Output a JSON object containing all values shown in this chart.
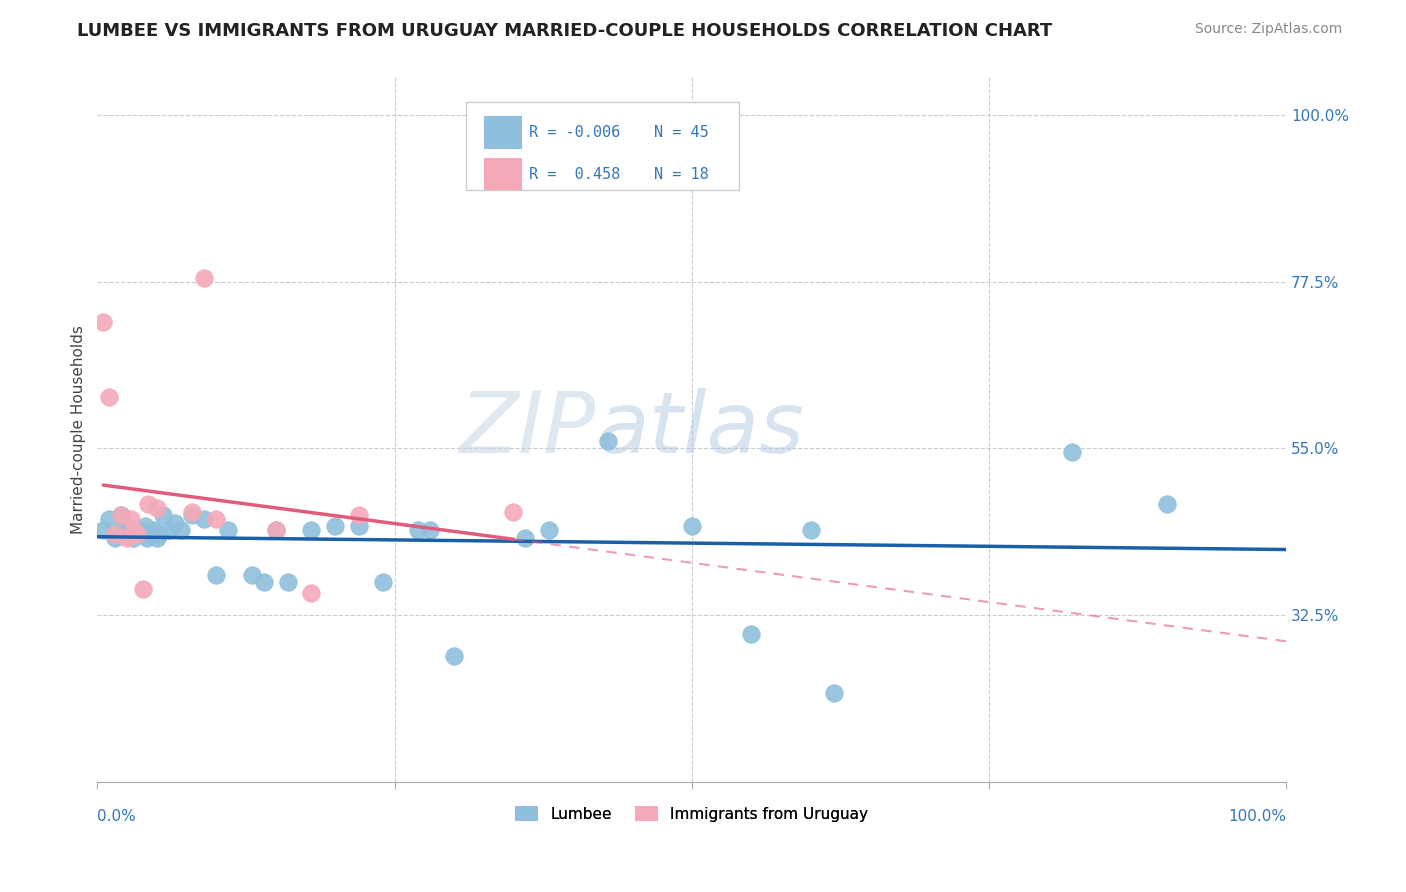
{
  "title": "LUMBEE VS IMMIGRANTS FROM URUGUAY MARRIED-COUPLE HOUSEHOLDS CORRELATION CHART",
  "source": "Source: ZipAtlas.com",
  "ylabel": "Married-couple Households",
  "ytick_labels": [
    "100.0%",
    "77.5%",
    "55.0%",
    "32.5%"
  ],
  "ytick_values": [
    1.0,
    0.775,
    0.55,
    0.325
  ],
  "xlim": [
    0.0,
    1.0
  ],
  "ylim": [
    0.1,
    1.05
  ],
  "legend_lumbee": "Lumbee",
  "legend_uruguay": "Immigrants from Uruguay",
  "R_lumbee": "-0.006",
  "N_lumbee": "45",
  "R_uruguay": "0.458",
  "N_uruguay": "18",
  "watermark_zip": "ZIP",
  "watermark_atlas": "atlas",
  "lumbee_color": "#8fbfdc",
  "uruguay_color": "#f4a9b8",
  "lumbee_trend_color": "#1a5fa8",
  "uruguay_trend_color": "#e05c7a",
  "lumbee_x": [
    0.005,
    0.01,
    0.015,
    0.02,
    0.022,
    0.025,
    0.027,
    0.03,
    0.032,
    0.035,
    0.038,
    0.04,
    0.042,
    0.045,
    0.048,
    0.05,
    0.052,
    0.055,
    0.06,
    0.065,
    0.07,
    0.08,
    0.09,
    0.1,
    0.11,
    0.13,
    0.14,
    0.15,
    0.16,
    0.18,
    0.2,
    0.22,
    0.24,
    0.27,
    0.28,
    0.3,
    0.36,
    0.38,
    0.43,
    0.5,
    0.55,
    0.6,
    0.62,
    0.82,
    0.9
  ],
  "lumbee_y": [
    0.44,
    0.455,
    0.43,
    0.46,
    0.445,
    0.44,
    0.435,
    0.43,
    0.435,
    0.44,
    0.435,
    0.445,
    0.43,
    0.435,
    0.44,
    0.43,
    0.435,
    0.46,
    0.44,
    0.45,
    0.44,
    0.46,
    0.455,
    0.38,
    0.44,
    0.38,
    0.37,
    0.44,
    0.37,
    0.44,
    0.445,
    0.445,
    0.37,
    0.44,
    0.44,
    0.27,
    0.43,
    0.44,
    0.56,
    0.445,
    0.3,
    0.44,
    0.22,
    0.545,
    0.475
  ],
  "uruguay_x": [
    0.005,
    0.01,
    0.015,
    0.02,
    0.025,
    0.028,
    0.03,
    0.033,
    0.038,
    0.043,
    0.05,
    0.08,
    0.09,
    0.1,
    0.15,
    0.18,
    0.22,
    0.35
  ],
  "uruguay_y": [
    0.72,
    0.62,
    0.435,
    0.46,
    0.43,
    0.455,
    0.44,
    0.435,
    0.36,
    0.475,
    0.47,
    0.465,
    0.78,
    0.455,
    0.44,
    0.355,
    0.46,
    0.465
  ],
  "background_color": "#ffffff",
  "grid_color": "#cccccc"
}
